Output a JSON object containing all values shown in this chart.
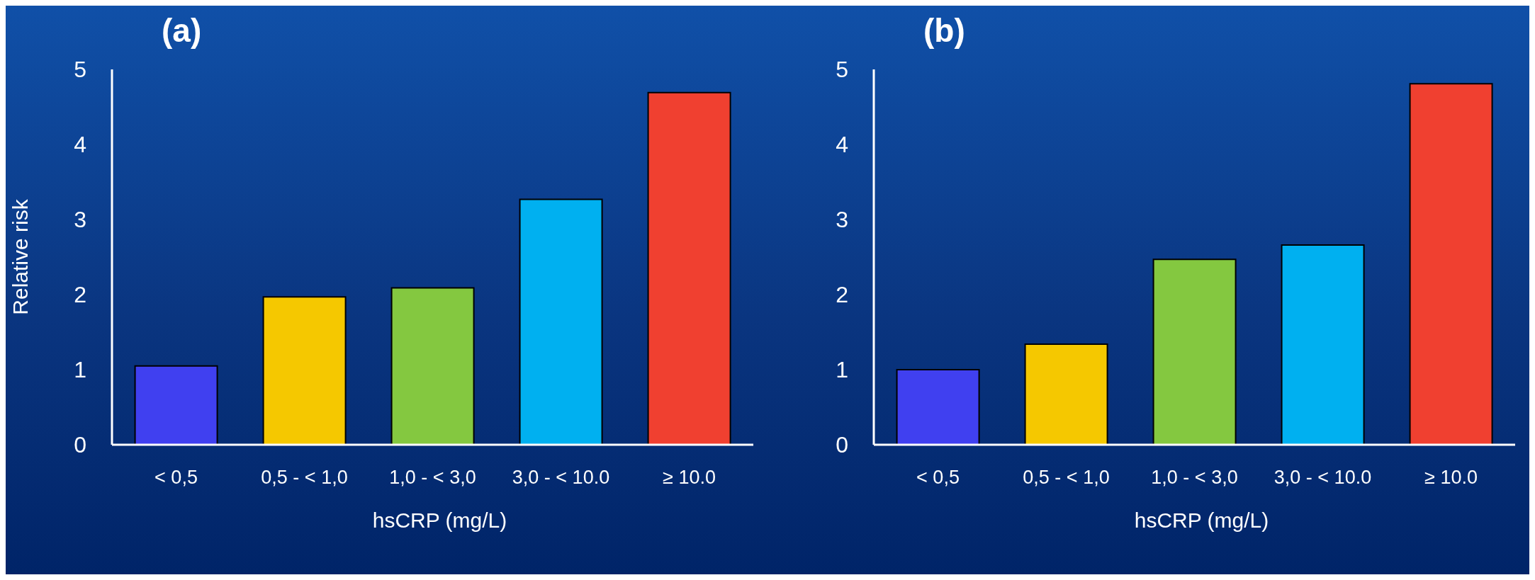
{
  "chart_data": [
    {
      "type": "bar",
      "title": "(a)",
      "xlabel": "hsCRP (mg/L)",
      "ylabel": "Relative risk",
      "categories": [
        "< 0,5",
        "0,5 - < 1,0",
        "1,0 - < 3,0",
        "3,0 - < 10.0",
        "≥ 10.0"
      ],
      "values": [
        1.05,
        1.97,
        2.09,
        3.27,
        4.69
      ],
      "colors": [
        "#4040f0",
        "#f5c800",
        "#84c840",
        "#00b0f0",
        "#f04030"
      ],
      "ylim": [
        0,
        5
      ],
      "yticks": [
        0,
        1,
        2,
        3,
        4,
        5
      ]
    },
    {
      "type": "bar",
      "title": "(b)",
      "xlabel": "hsCRP (mg/L)",
      "categories": [
        "< 0,5",
        "0,5 - < 1,0",
        "1,0 - < 3,0",
        "3,0 - < 10.0",
        "≥ 10.0"
      ],
      "values": [
        1.0,
        1.34,
        2.47,
        2.66,
        4.81
      ],
      "colors": [
        "#4040f0",
        "#f5c800",
        "#84c840",
        "#00b0f0",
        "#f04030"
      ],
      "ylim": [
        0,
        5
      ],
      "yticks": [
        0,
        1,
        2,
        3,
        4,
        5
      ]
    }
  ]
}
